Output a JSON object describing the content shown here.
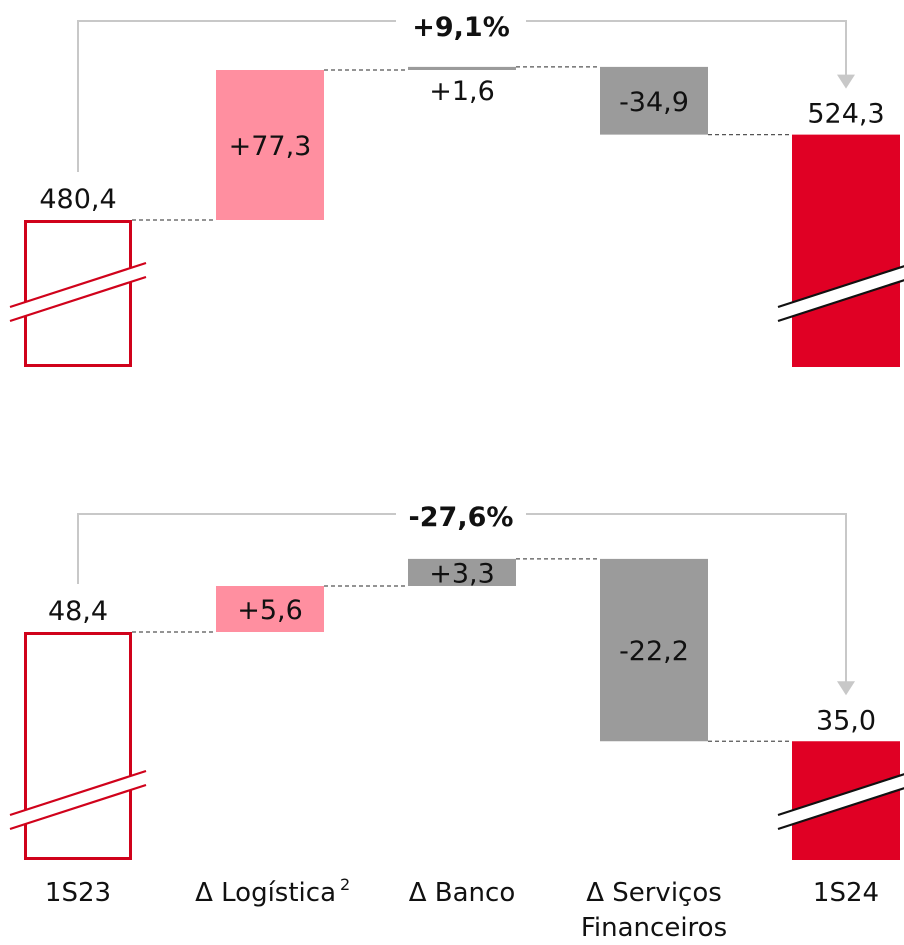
{
  "colors": {
    "total_start_stroke": "#d0021b",
    "total_end_fill": "#e00024",
    "logistics_fill": "#ff8fa0",
    "grey_fill": "#9b9b9b",
    "connector": "#555555",
    "bracket": "#c8c8c8"
  },
  "categories": [
    "1S23",
    "Δ Logística",
    "Δ Banco",
    "Δ Serviços Financeiros",
    "1S24"
  ],
  "category_labels": {
    "c0": "1S23",
    "c1_main": "Δ Logística",
    "c1_sup": "2",
    "c2": "Δ Banco",
    "c3_line1": "Δ Serviços",
    "c3_line2": "Financeiros",
    "c4": "1S24"
  },
  "chart_data": [
    {
      "type": "bar",
      "subtype": "waterfall",
      "categories": [
        "1S23",
        "Δ Logística",
        "Δ Banco",
        "Δ Serviços Financeiros",
        "1S24"
      ],
      "values": [
        480.4,
        77.3,
        1.6,
        -34.9,
        524.3
      ],
      "labels": [
        "480,4",
        "+77,3",
        "+1,6",
        "-34,9",
        "524,3"
      ],
      "change_label": "+9,1%",
      "broken_axis": true,
      "baseline": 380
    },
    {
      "type": "bar",
      "subtype": "waterfall",
      "categories": [
        "1S23",
        "Δ Logística",
        "Δ Banco",
        "Δ Serviços Financeiros",
        "1S24"
      ],
      "values": [
        48.4,
        5.6,
        3.3,
        -22.2,
        35.0
      ],
      "labels": [
        "48,4",
        "+5,6",
        "+3,3",
        "-22,2",
        "35,0"
      ],
      "change_label": "-27,6%",
      "broken_axis": true,
      "baseline": 20
    }
  ]
}
